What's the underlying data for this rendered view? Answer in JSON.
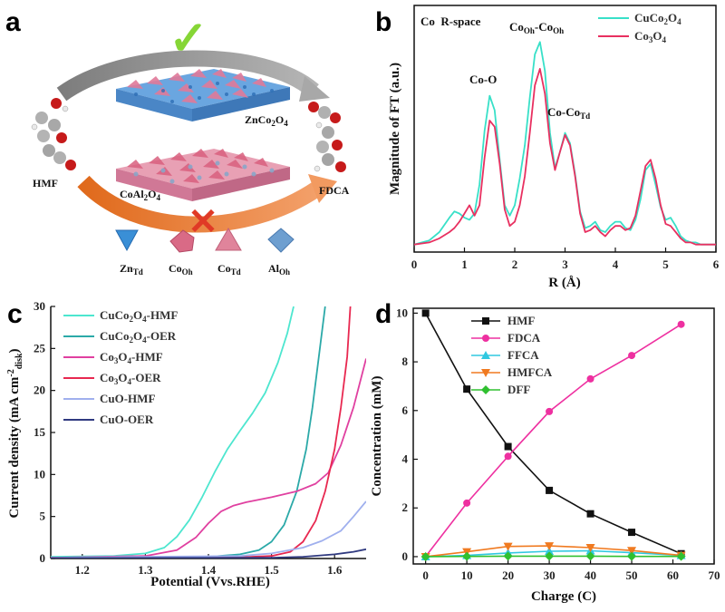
{
  "panel_labels": {
    "a": "a",
    "b": "b",
    "c": "c",
    "d": "d"
  },
  "scheme": {
    "check": "✓",
    "cross": "✕",
    "top_crystal": "ZnCo2O4",
    "bottom_crystal": "CoAl2O4",
    "reactant": "HMF",
    "product": "FDCA",
    "legend": [
      {
        "name": "Zn",
        "sub": "Td",
        "color": "#3a8fd6"
      },
      {
        "name": "Co",
        "sub": "Oh",
        "color": "#d96a86"
      },
      {
        "name": "Co",
        "sub": "Td",
        "color": "#e0849b"
      },
      {
        "name": "Al",
        "sub": "Oh",
        "color": "#6e9fd0"
      }
    ]
  },
  "chart_data": [
    {
      "id": "b",
      "type": "line",
      "title": "Co  R-space",
      "xlabel": "R (Å)",
      "ylabel": "Magnitude of FT (a.u.)",
      "xlim": [
        0,
        6
      ],
      "xticks": [
        "0",
        "1",
        "2",
        "3",
        "4",
        "5",
        "6"
      ],
      "annotations": {
        "co_o": "Co-O",
        "cooh_cooh": {
          "a": "Co",
          "a_sub": "Oh",
          "sep": "-Co",
          "b_sub": "Oh"
        },
        "co_cotd": {
          "a": "Co-Co",
          "a_sub": "Td"
        }
      },
      "series": [
        {
          "name": "CuCo2O4",
          "label": {
            "p1": "CuCo",
            "s1": "2",
            "p2": "O",
            "s2": "4"
          },
          "color": "#38e0c8",
          "x": [
            0,
            0.3,
            0.5,
            0.7,
            0.8,
            0.9,
            1.0,
            1.1,
            1.2,
            1.3,
            1.4,
            1.5,
            1.6,
            1.7,
            1.8,
            1.9,
            2.0,
            2.1,
            2.2,
            2.3,
            2.4,
            2.5,
            2.6,
            2.7,
            2.8,
            2.9,
            3.0,
            3.1,
            3.2,
            3.3,
            3.4,
            3.5,
            3.6,
            3.7,
            3.8,
            3.9,
            4.0,
            4.1,
            4.2,
            4.3,
            4.4,
            4.5,
            4.6,
            4.7,
            4.8,
            4.9,
            5.0,
            5.1,
            5.2,
            5.3,
            5.4,
            5.5,
            5.6,
            5.7,
            5.8,
            5.9,
            6.0
          ],
          "y": [
            0.01,
            0.03,
            0.07,
            0.14,
            0.17,
            0.16,
            0.14,
            0.13,
            0.16,
            0.3,
            0.56,
            0.73,
            0.66,
            0.42,
            0.2,
            0.15,
            0.2,
            0.33,
            0.49,
            0.72,
            0.93,
            0.99,
            0.85,
            0.55,
            0.38,
            0.46,
            0.55,
            0.5,
            0.35,
            0.17,
            0.09,
            0.1,
            0.12,
            0.08,
            0.07,
            0.1,
            0.12,
            0.12,
            0.09,
            0.08,
            0.13,
            0.23,
            0.37,
            0.4,
            0.3,
            0.19,
            0.13,
            0.14,
            0.1,
            0.05,
            0.03,
            0.02,
            0.02,
            0.01,
            0.01,
            0.01,
            0.01
          ]
        },
        {
          "name": "Co3O4",
          "label": {
            "p1": "Co",
            "s1": "3",
            "p2": "O",
            "s2": "4"
          },
          "color": "#e83060",
          "x": [
            0,
            0.3,
            0.5,
            0.7,
            0.8,
            0.9,
            1.0,
            1.1,
            1.2,
            1.3,
            1.4,
            1.5,
            1.6,
            1.7,
            1.8,
            1.9,
            2.0,
            2.1,
            2.2,
            2.3,
            2.4,
            2.5,
            2.6,
            2.7,
            2.8,
            2.9,
            3.0,
            3.1,
            3.2,
            3.3,
            3.4,
            3.5,
            3.6,
            3.7,
            3.8,
            3.9,
            4.0,
            4.1,
            4.2,
            4.3,
            4.4,
            4.5,
            4.6,
            4.7,
            4.8,
            4.9,
            5.0,
            5.1,
            5.2,
            5.3,
            5.4,
            5.5,
            5.6,
            5.7,
            5.8,
            5.9,
            6.0
          ],
          "y": [
            0.01,
            0.02,
            0.04,
            0.07,
            0.09,
            0.12,
            0.16,
            0.2,
            0.15,
            0.2,
            0.43,
            0.61,
            0.58,
            0.4,
            0.18,
            0.1,
            0.12,
            0.2,
            0.34,
            0.55,
            0.78,
            0.86,
            0.74,
            0.5,
            0.37,
            0.46,
            0.54,
            0.49,
            0.34,
            0.16,
            0.07,
            0.08,
            0.1,
            0.07,
            0.05,
            0.08,
            0.1,
            0.1,
            0.08,
            0.09,
            0.15,
            0.27,
            0.39,
            0.42,
            0.33,
            0.2,
            0.11,
            0.1,
            0.07,
            0.04,
            0.02,
            0.02,
            0.01,
            0.01,
            0.01,
            0.01,
            0.01
          ]
        }
      ]
    },
    {
      "id": "c",
      "type": "line",
      "xlabel": "Potential (Vvs.RHE)",
      "ylabel": {
        "main": "Current density (mA cm",
        "sup": "-2",
        "sub": "disk",
        "end": ")"
      },
      "xlim": [
        1.15,
        1.65
      ],
      "ylim": [
        0,
        30
      ],
      "xticks": [
        "1.2",
        "1.3",
        "1.4",
        "1.5",
        "1.6"
      ],
      "yticks": [
        "0",
        "5",
        "10",
        "15",
        "20",
        "25",
        "30"
      ],
      "series": [
        {
          "name": "CuCo2O4-HMF",
          "label": {
            "p1": "CuCo",
            "s1": "2",
            "p2": "O",
            "s2": "4",
            "end": "-HMF"
          },
          "color": "#4de6cf",
          "x": [
            1.15,
            1.25,
            1.3,
            1.33,
            1.35,
            1.37,
            1.39,
            1.41,
            1.43,
            1.45,
            1.47,
            1.49,
            1.51,
            1.525,
            1.535
          ],
          "y": [
            0.2,
            0.3,
            0.6,
            1.3,
            2.6,
            4.6,
            7.3,
            10.3,
            13.0,
            15.2,
            17.3,
            19.7,
            23.3,
            26.8,
            30
          ]
        },
        {
          "name": "CuCo2O4-OER",
          "label": {
            "p1": "CuCo",
            "s1": "2",
            "p2": "O",
            "s2": "4",
            "end": "-OER"
          },
          "color": "#2ba9a8",
          "x": [
            1.15,
            1.4,
            1.45,
            1.48,
            1.5,
            1.52,
            1.54,
            1.555,
            1.565,
            1.575,
            1.585
          ],
          "y": [
            0.1,
            0.2,
            0.5,
            1.0,
            2.0,
            4.0,
            8.0,
            13.0,
            18.0,
            24.0,
            30
          ]
        },
        {
          "name": "Co3O4-HMF",
          "label": {
            "p1": "Co",
            "s1": "3",
            "p2": "O",
            "s2": "4",
            "end": "-HMF"
          },
          "color": "#e040a0",
          "x": [
            1.15,
            1.3,
            1.35,
            1.38,
            1.4,
            1.42,
            1.44,
            1.46,
            1.5,
            1.54,
            1.57,
            1.59,
            1.61,
            1.63,
            1.65
          ],
          "y": [
            0.1,
            0.3,
            1.0,
            2.5,
            4.2,
            5.6,
            6.3,
            6.7,
            7.3,
            8.0,
            8.9,
            10.2,
            13.5,
            18.0,
            23.8
          ]
        },
        {
          "name": "Co3O4-OER",
          "label": {
            "p1": "Co",
            "s1": "3",
            "p2": "O",
            "s2": "4",
            "end": "-OER"
          },
          "color": "#e82850",
          "x": [
            1.15,
            1.45,
            1.5,
            1.53,
            1.55,
            1.57,
            1.585,
            1.6,
            1.61,
            1.62,
            1.625
          ],
          "y": [
            0.1,
            0.15,
            0.3,
            0.8,
            2.0,
            4.5,
            8.0,
            13.0,
            18.0,
            24.0,
            30
          ]
        },
        {
          "name": "CuO-HMF",
          "label": {
            "p1": "CuO-HMF"
          },
          "color": "#a0b0ee",
          "x": [
            1.15,
            1.45,
            1.5,
            1.55,
            1.58,
            1.61,
            1.63,
            1.65
          ],
          "y": [
            0.1,
            0.3,
            0.6,
            1.3,
            2.1,
            3.3,
            5.0,
            6.8
          ]
        },
        {
          "name": "CuO-OER",
          "label": {
            "p1": "CuO-OER"
          },
          "color": "#303a80",
          "x": [
            1.15,
            1.5,
            1.55,
            1.6,
            1.63,
            1.65
          ],
          "y": [
            0.05,
            0.1,
            0.2,
            0.5,
            0.8,
            1.1
          ]
        }
      ]
    },
    {
      "id": "d",
      "type": "line",
      "xlabel": "Charge (C)",
      "ylabel": "Concentration (mM)",
      "xlim": [
        -3,
        70
      ],
      "ylim": [
        -0.3,
        10.2
      ],
      "xticks": [
        "0",
        "10",
        "20",
        "30",
        "40",
        "50",
        "60",
        "70"
      ],
      "yticks": [
        "0",
        "2",
        "4",
        "6",
        "8",
        "10"
      ],
      "x": [
        0,
        10,
        20,
        30,
        40,
        50,
        62
      ],
      "series": [
        {
          "name": "HMF",
          "color": "#111111",
          "marker": "square",
          "values": [
            10.0,
            6.88,
            4.52,
            2.72,
            1.76,
            1.0,
            0.12
          ]
        },
        {
          "name": "FDCA",
          "color": "#ee30a0",
          "marker": "circle",
          "values": [
            0.0,
            2.2,
            4.12,
            5.96,
            7.3,
            8.26,
            9.54
          ]
        },
        {
          "name": "FFCA",
          "color": "#30c8e0",
          "marker": "triangle-up",
          "values": [
            0.0,
            0.05,
            0.15,
            0.22,
            0.24,
            0.16,
            0.05
          ]
        },
        {
          "name": "HMFCA",
          "color": "#f07a20",
          "marker": "triangle-down",
          "values": [
            0.0,
            0.2,
            0.42,
            0.44,
            0.37,
            0.25,
            0.05
          ]
        },
        {
          "name": "DFF",
          "color": "#30c030",
          "marker": "diamond",
          "values": [
            0.0,
            0.01,
            0.02,
            0.02,
            0.02,
            0.01,
            0.01
          ]
        }
      ]
    }
  ]
}
